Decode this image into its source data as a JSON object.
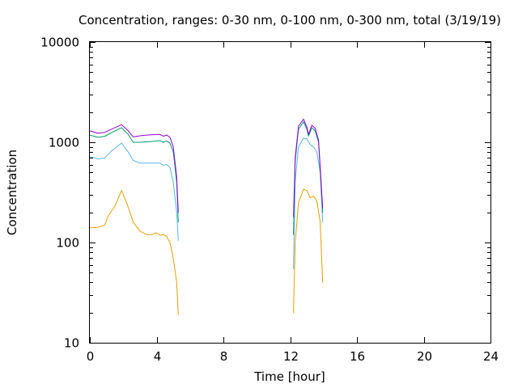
{
  "chart_data": {
    "type": "line",
    "title": "Concentration, ranges: 0-30 nm, 0-100 nm, 0-300 nm, total (3/19/19)",
    "xlabel": "Time [hour]",
    "ylabel": "Concentration",
    "xlim": [
      0,
      24
    ],
    "ylim": [
      10,
      10000
    ],
    "yscale": "log",
    "grid": false,
    "legend": "none",
    "x_ticks": [
      0,
      4,
      8,
      12,
      16,
      20,
      24
    ],
    "x_tick_labels": [
      "0",
      "4",
      "8",
      "12",
      "16",
      "20",
      "24"
    ],
    "y_ticks": [
      10,
      100,
      1000,
      10000
    ],
    "y_tick_labels": [
      "10",
      "100",
      "1000",
      "10000"
    ],
    "series": [
      {
        "color": "#e69f00",
        "segments": [
          [
            [
              0,
              140
            ],
            [
              0.5,
              142
            ],
            [
              0.9,
              150
            ],
            [
              1.1,
              185
            ],
            [
              1.5,
              230
            ],
            [
              1.9,
              330
            ],
            [
              2.2,
              250
            ],
            [
              2.6,
              160
            ],
            [
              3.0,
              130
            ],
            [
              3.4,
              120
            ],
            [
              3.7,
              120
            ],
            [
              4.0,
              125
            ],
            [
              4.2,
              118
            ],
            [
              4.4,
              120
            ],
            [
              4.6,
              115
            ],
            [
              4.8,
              100
            ],
            [
              5.0,
              70
            ],
            [
              5.2,
              40
            ],
            [
              5.3,
              19
            ]
          ],
          [
            [
              12.2,
              20
            ],
            [
              12.3,
              100
            ],
            [
              12.5,
              250
            ],
            [
              12.8,
              340
            ],
            [
              13.0,
              330
            ],
            [
              13.2,
              280
            ],
            [
              13.4,
              290
            ],
            [
              13.6,
              260
            ],
            [
              13.8,
              160
            ],
            [
              13.95,
              40
            ]
          ]
        ]
      },
      {
        "color": "#56b4e9",
        "segments": [
          [
            [
              0,
              720
            ],
            [
              0.5,
              680
            ],
            [
              0.9,
              700
            ],
            [
              1.3,
              820
            ],
            [
              1.9,
              980
            ],
            [
              2.3,
              800
            ],
            [
              2.6,
              660
            ],
            [
              3.0,
              620
            ],
            [
              3.4,
              620
            ],
            [
              3.8,
              620
            ],
            [
              4.2,
              620
            ],
            [
              4.4,
              590
            ],
            [
              4.6,
              600
            ],
            [
              4.8,
              560
            ],
            [
              5.0,
              400
            ],
            [
              5.2,
              200
            ],
            [
              5.3,
              105
            ]
          ],
          [
            [
              12.2,
              55
            ],
            [
              12.3,
              400
            ],
            [
              12.5,
              900
            ],
            [
              12.8,
              1100
            ],
            [
              13.0,
              1080
            ],
            [
              13.2,
              950
            ],
            [
              13.4,
              900
            ],
            [
              13.6,
              800
            ],
            [
              13.8,
              500
            ],
            [
              13.95,
              160
            ]
          ]
        ]
      },
      {
        "color": "#009e73",
        "segments": [
          [
            [
              0,
              1180
            ],
            [
              0.5,
              1120
            ],
            [
              0.9,
              1150
            ],
            [
              1.3,
              1250
            ],
            [
              1.9,
              1400
            ],
            [
              2.3,
              1200
            ],
            [
              2.6,
              1000
            ],
            [
              3.0,
              1000
            ],
            [
              3.4,
              1010
            ],
            [
              3.8,
              1020
            ],
            [
              4.2,
              1040
            ],
            [
              4.4,
              1000
            ],
            [
              4.6,
              1030
            ],
            [
              4.8,
              980
            ],
            [
              5.0,
              800
            ],
            [
              5.2,
              400
            ],
            [
              5.3,
              160
            ]
          ],
          [
            [
              12.2,
              120
            ],
            [
              12.3,
              650
            ],
            [
              12.5,
              1350
            ],
            [
              12.8,
              1600
            ],
            [
              13.0,
              1350
            ],
            [
              13.1,
              1150
            ],
            [
              13.3,
              1400
            ],
            [
              13.5,
              1300
            ],
            [
              13.7,
              1000
            ],
            [
              13.95,
              200
            ]
          ]
        ]
      },
      {
        "color": "#9400d3",
        "segments": [
          [
            [
              0,
              1300
            ],
            [
              0.5,
              1230
            ],
            [
              0.9,
              1260
            ],
            [
              1.3,
              1350
            ],
            [
              1.9,
              1500
            ],
            [
              2.3,
              1300
            ],
            [
              2.6,
              1130
            ],
            [
              3.0,
              1160
            ],
            [
              3.4,
              1180
            ],
            [
              3.8,
              1190
            ],
            [
              4.2,
              1200
            ],
            [
              4.4,
              1150
            ],
            [
              4.6,
              1180
            ],
            [
              4.8,
              1120
            ],
            [
              5.0,
              900
            ],
            [
              5.2,
              450
            ],
            [
              5.3,
              200
            ]
          ],
          [
            [
              12.2,
              180
            ],
            [
              12.3,
              700
            ],
            [
              12.5,
              1450
            ],
            [
              12.8,
              1700
            ],
            [
              13.0,
              1420
            ],
            [
              13.1,
              1200
            ],
            [
              13.3,
              1480
            ],
            [
              13.5,
              1380
            ],
            [
              13.7,
              1050
            ],
            [
              13.95,
              220
            ]
          ]
        ]
      }
    ]
  }
}
